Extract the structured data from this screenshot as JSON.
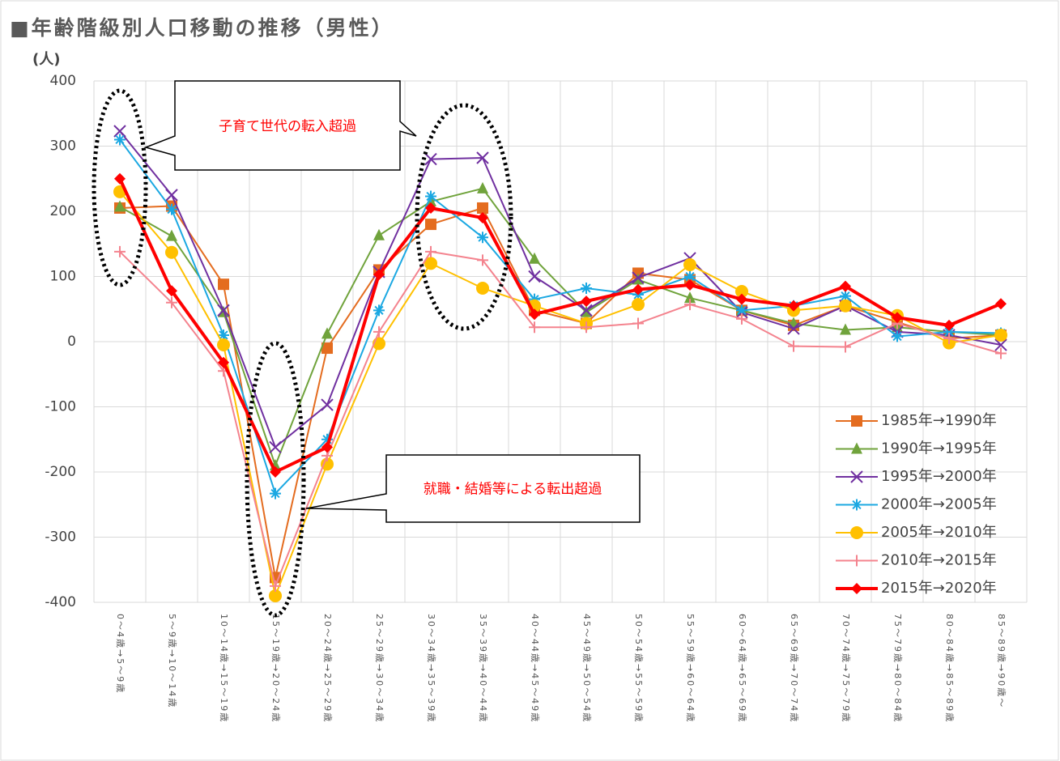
{
  "chart_data": {
    "type": "line",
    "title": "■年齢階級別人口移動の推移（男性）",
    "y_label": "(人)",
    "annotations": [
      "子育て世代の転入超過",
      "就職・結婚等による転出超過"
    ],
    "categories": [
      "0～4歳→5～9歳",
      "5～9歳→10～14歳",
      "10～14歳→15～19歳",
      "15～19歳→20～24歳",
      "20～24歳→25～29歳",
      "25～29歳→30～34歳",
      "30～34歳→35～39歳",
      "35～39歳→40～44歳",
      "40～44歳→45～49歳",
      "45～49歳→50～54歳",
      "50～54歳→55～59歳",
      "55～59歳→60～64歳",
      "60～64歳→65～69歳",
      "65～69歳→70～74歳",
      "70～74歳→75～79歳",
      "75～79歳→80～84歳",
      "80～84歳→85～89歳",
      "85～89歳→90歳～"
    ],
    "ylim": [
      -400,
      400
    ],
    "yticks": [
      -400,
      -300,
      -200,
      -100,
      0,
      100,
      200,
      300,
      400
    ],
    "grid": true,
    "legend": "lower right",
    "series": [
      {
        "name": "1985年→1990年",
        "color": "#e46c1f",
        "marker": "square",
        "values": [
          205,
          208,
          88,
          -362,
          -10,
          110,
          180,
          205,
          48,
          28,
          105,
          95,
          48,
          25,
          55,
          30,
          5,
          10
        ]
      },
      {
        "name": "1990年→1995年",
        "color": "#70a33c",
        "marker": "triangle",
        "values": [
          207,
          162,
          45,
          -190,
          12,
          163,
          215,
          235,
          127,
          45,
          95,
          67,
          48,
          28,
          18,
          22,
          15,
          10
        ]
      },
      {
        "name": "1995年→2000年",
        "color": "#7030a0",
        "marker": "x",
        "values": [
          323,
          225,
          48,
          -162,
          -97,
          107,
          280,
          282,
          100,
          48,
          98,
          128,
          45,
          20,
          55,
          15,
          10,
          -5
        ]
      },
      {
        "name": "2000年→2005年",
        "color": "#1ba8e2",
        "marker": "star",
        "values": [
          310,
          203,
          10,
          -233,
          -150,
          48,
          223,
          160,
          65,
          82,
          72,
          100,
          48,
          55,
          70,
          8,
          15,
          13
        ]
      },
      {
        "name": "2005年→2010年",
        "color": "#ffc000",
        "marker": "circle",
        "values": [
          230,
          137,
          -5,
          -390,
          -188,
          -3,
          120,
          82,
          55,
          28,
          57,
          118,
          77,
          48,
          55,
          40,
          -2,
          10
        ]
      },
      {
        "name": "2010年→2015年",
        "color": "#f4838e",
        "marker": "plus",
        "values": [
          138,
          60,
          -45,
          -375,
          -175,
          15,
          138,
          125,
          22,
          22,
          28,
          57,
          35,
          -7,
          -8,
          28,
          5,
          -18
        ]
      },
      {
        "name": "2015年→2020年",
        "color": "#ff0000",
        "marker": "diamond",
        "width": 4,
        "values": [
          250,
          78,
          -32,
          -200,
          -162,
          103,
          205,
          190,
          42,
          62,
          80,
          87,
          65,
          55,
          85,
          37,
          25,
          58
        ]
      }
    ]
  }
}
